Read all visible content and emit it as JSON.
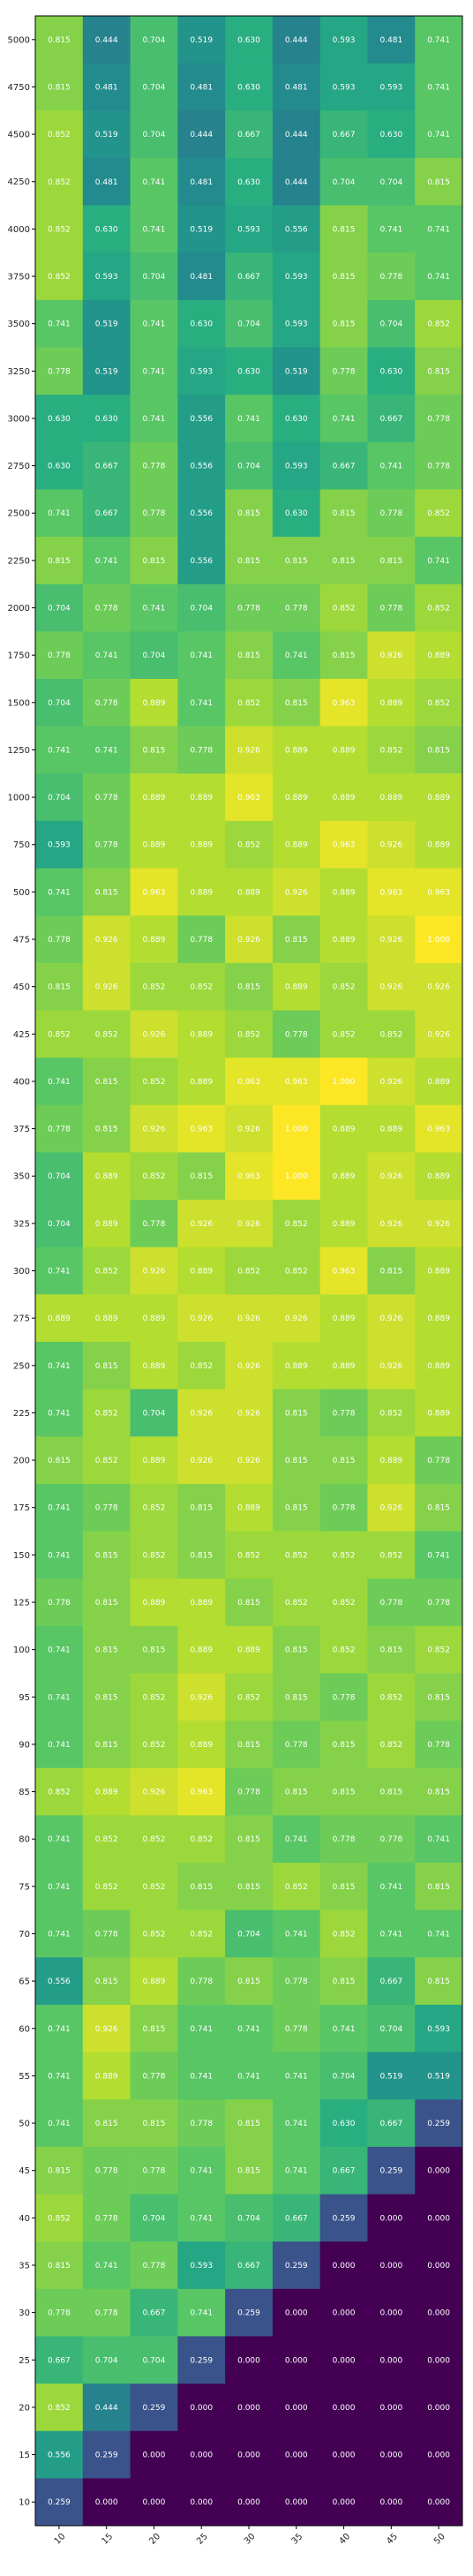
{
  "chart_data": {
    "type": "heatmap",
    "colormap": "viridis",
    "value_range": [
      0,
      1
    ],
    "x_labels": [
      "10",
      "15",
      "20",
      "25",
      "30",
      "35",
      "40",
      "45",
      "50"
    ],
    "y_labels": [
      "5000",
      "4750",
      "4500",
      "4250",
      "4000",
      "3750",
      "3500",
      "3250",
      "3000",
      "2750",
      "2500",
      "2250",
      "2000",
      "1750",
      "1500",
      "1250",
      "1000",
      "750",
      "500",
      "475",
      "450",
      "425",
      "400",
      "375",
      "350",
      "325",
      "300",
      "275",
      "250",
      "225",
      "200",
      "175",
      "150",
      "125",
      "100",
      "95",
      "90",
      "85",
      "80",
      "75",
      "70",
      "65",
      "60",
      "55",
      "50",
      "45",
      "40",
      "35",
      "30",
      "25",
      "20",
      "15",
      "10"
    ],
    "values": [
      [
        0.815,
        0.444,
        0.704,
        0.519,
        0.63,
        0.444,
        0.593,
        0.481,
        0.741
      ],
      [
        0.815,
        0.481,
        0.704,
        0.481,
        0.63,
        0.481,
        0.593,
        0.593,
        0.741
      ],
      [
        0.852,
        0.519,
        0.704,
        0.444,
        0.667,
        0.444,
        0.667,
        0.63,
        0.741
      ],
      [
        0.852,
        0.481,
        0.741,
        0.481,
        0.63,
        0.444,
        0.704,
        0.704,
        0.815
      ],
      [
        0.852,
        0.63,
        0.741,
        0.519,
        0.593,
        0.556,
        0.815,
        0.741,
        0.741
      ],
      [
        0.852,
        0.593,
        0.704,
        0.481,
        0.667,
        0.593,
        0.815,
        0.778,
        0.741
      ],
      [
        0.741,
        0.519,
        0.741,
        0.63,
        0.704,
        0.593,
        0.815,
        0.704,
        0.852
      ],
      [
        0.778,
        0.519,
        0.741,
        0.593,
        0.63,
        0.519,
        0.778,
        0.63,
        0.815
      ],
      [
        0.63,
        0.63,
        0.741,
        0.556,
        0.741,
        0.63,
        0.741,
        0.667,
        0.778
      ],
      [
        0.63,
        0.667,
        0.778,
        0.556,
        0.704,
        0.593,
        0.667,
        0.741,
        0.778
      ],
      [
        0.741,
        0.667,
        0.778,
        0.556,
        0.815,
        0.63,
        0.815,
        0.778,
        0.852
      ],
      [
        0.815,
        0.741,
        0.815,
        0.556,
        0.815,
        0.815,
        0.815,
        0.815,
        0.741
      ],
      [
        0.704,
        0.778,
        0.741,
        0.704,
        0.778,
        0.778,
        0.852,
        0.778,
        0.852
      ],
      [
        0.778,
        0.741,
        0.704,
        0.741,
        0.815,
        0.741,
        0.815,
        0.926,
        0.889
      ],
      [
        0.704,
        0.778,
        0.889,
        0.741,
        0.852,
        0.815,
        0.963,
        0.889,
        0.852
      ],
      [
        0.741,
        0.741,
        0.815,
        0.778,
        0.926,
        0.889,
        0.889,
        0.852,
        0.815
      ],
      [
        0.704,
        0.778,
        0.889,
        0.889,
        0.963,
        0.889,
        0.889,
        0.889,
        0.889
      ],
      [
        0.593,
        0.778,
        0.889,
        0.889,
        0.852,
        0.889,
        0.963,
        0.926,
        0.889
      ],
      [
        0.741,
        0.815,
        0.963,
        0.889,
        0.889,
        0.926,
        0.889,
        0.963,
        0.963
      ],
      [
        0.778,
        0.926,
        0.889,
        0.778,
        0.926,
        0.815,
        0.889,
        0.926,
        1.0
      ],
      [
        0.815,
        0.926,
        0.852,
        0.852,
        0.815,
        0.889,
        0.852,
        0.926,
        0.926
      ],
      [
        0.852,
        0.852,
        0.926,
        0.889,
        0.852,
        0.778,
        0.852,
        0.852,
        0.926
      ],
      [
        0.741,
        0.815,
        0.852,
        0.889,
        0.963,
        0.963,
        1.0,
        0.926,
        0.889
      ],
      [
        0.778,
        0.815,
        0.926,
        0.963,
        0.926,
        1.0,
        0.889,
        0.889,
        0.963
      ],
      [
        0.704,
        0.889,
        0.852,
        0.815,
        0.963,
        1.0,
        0.889,
        0.926,
        0.889
      ],
      [
        0.704,
        0.889,
        0.778,
        0.926,
        0.926,
        0.852,
        0.889,
        0.926,
        0.926
      ],
      [
        0.741,
        0.852,
        0.926,
        0.889,
        0.852,
        0.852,
        0.963,
        0.815,
        0.889
      ],
      [
        0.889,
        0.889,
        0.889,
        0.926,
        0.926,
        0.926,
        0.889,
        0.926,
        0.889
      ],
      [
        0.741,
        0.815,
        0.889,
        0.852,
        0.926,
        0.889,
        0.889,
        0.926,
        0.889
      ],
      [
        0.741,
        0.852,
        0.704,
        0.926,
        0.926,
        0.815,
        0.778,
        0.852,
        0.889
      ],
      [
        0.815,
        0.852,
        0.889,
        0.926,
        0.926,
        0.815,
        0.815,
        0.889,
        0.778
      ],
      [
        0.741,
        0.778,
        0.852,
        0.815,
        0.889,
        0.815,
        0.778,
        0.926,
        0.815
      ],
      [
        0.741,
        0.815,
        0.852,
        0.815,
        0.852,
        0.852,
        0.852,
        0.852,
        0.741
      ],
      [
        0.778,
        0.815,
        0.889,
        0.889,
        0.815,
        0.852,
        0.852,
        0.778,
        0.778
      ],
      [
        0.741,
        0.815,
        0.815,
        0.889,
        0.889,
        0.815,
        0.852,
        0.815,
        0.852
      ],
      [
        0.741,
        0.815,
        0.852,
        0.926,
        0.852,
        0.815,
        0.778,
        0.852,
        0.815
      ],
      [
        0.741,
        0.815,
        0.852,
        0.889,
        0.815,
        0.778,
        0.815,
        0.852,
        0.778
      ],
      [
        0.852,
        0.889,
        0.926,
        0.963,
        0.778,
        0.815,
        0.815,
        0.815,
        0.815
      ],
      [
        0.741,
        0.852,
        0.852,
        0.852,
        0.815,
        0.741,
        0.778,
        0.778,
        0.741
      ],
      [
        0.741,
        0.852,
        0.852,
        0.815,
        0.815,
        0.852,
        0.815,
        0.741,
        0.815
      ],
      [
        0.741,
        0.778,
        0.852,
        0.852,
        0.704,
        0.741,
        0.852,
        0.741,
        0.741
      ],
      [
        0.556,
        0.815,
        0.889,
        0.778,
        0.815,
        0.778,
        0.815,
        0.667,
        0.815
      ],
      [
        0.741,
        0.926,
        0.815,
        0.741,
        0.741,
        0.778,
        0.741,
        0.704,
        0.593
      ],
      [
        0.741,
        0.889,
        0.778,
        0.741,
        0.741,
        0.741,
        0.704,
        0.519,
        0.519
      ],
      [
        0.741,
        0.815,
        0.815,
        0.778,
        0.815,
        0.741,
        0.63,
        0.667,
        0.259
      ],
      [
        0.815,
        0.778,
        0.778,
        0.741,
        0.815,
        0.741,
        0.667,
        0.259,
        0.0
      ],
      [
        0.852,
        0.778,
        0.704,
        0.741,
        0.704,
        0.667,
        0.259,
        0.0,
        0.0
      ],
      [
        0.815,
        0.741,
        0.778,
        0.593,
        0.667,
        0.259,
        0.0,
        0.0,
        0.0
      ],
      [
        0.778,
        0.778,
        0.667,
        0.741,
        0.259,
        0.0,
        0.0,
        0.0,
        0.0
      ],
      [
        0.667,
        0.704,
        0.704,
        0.259,
        0.0,
        0.0,
        0.0,
        0.0,
        0.0
      ],
      [
        0.852,
        0.444,
        0.259,
        0.0,
        0.0,
        0.0,
        0.0,
        0.0,
        0.0
      ],
      [
        0.556,
        0.259,
        0.0,
        0.0,
        0.0,
        0.0,
        0.0,
        0.0,
        0.0
      ],
      [
        0.259,
        0.0,
        0.0,
        0.0,
        0.0,
        0.0,
        0.0,
        0.0,
        0.0
      ]
    ],
    "value_format": "3 decimals",
    "title": "",
    "xlabel": "",
    "ylabel": "",
    "grid": false,
    "legend": "none"
  }
}
